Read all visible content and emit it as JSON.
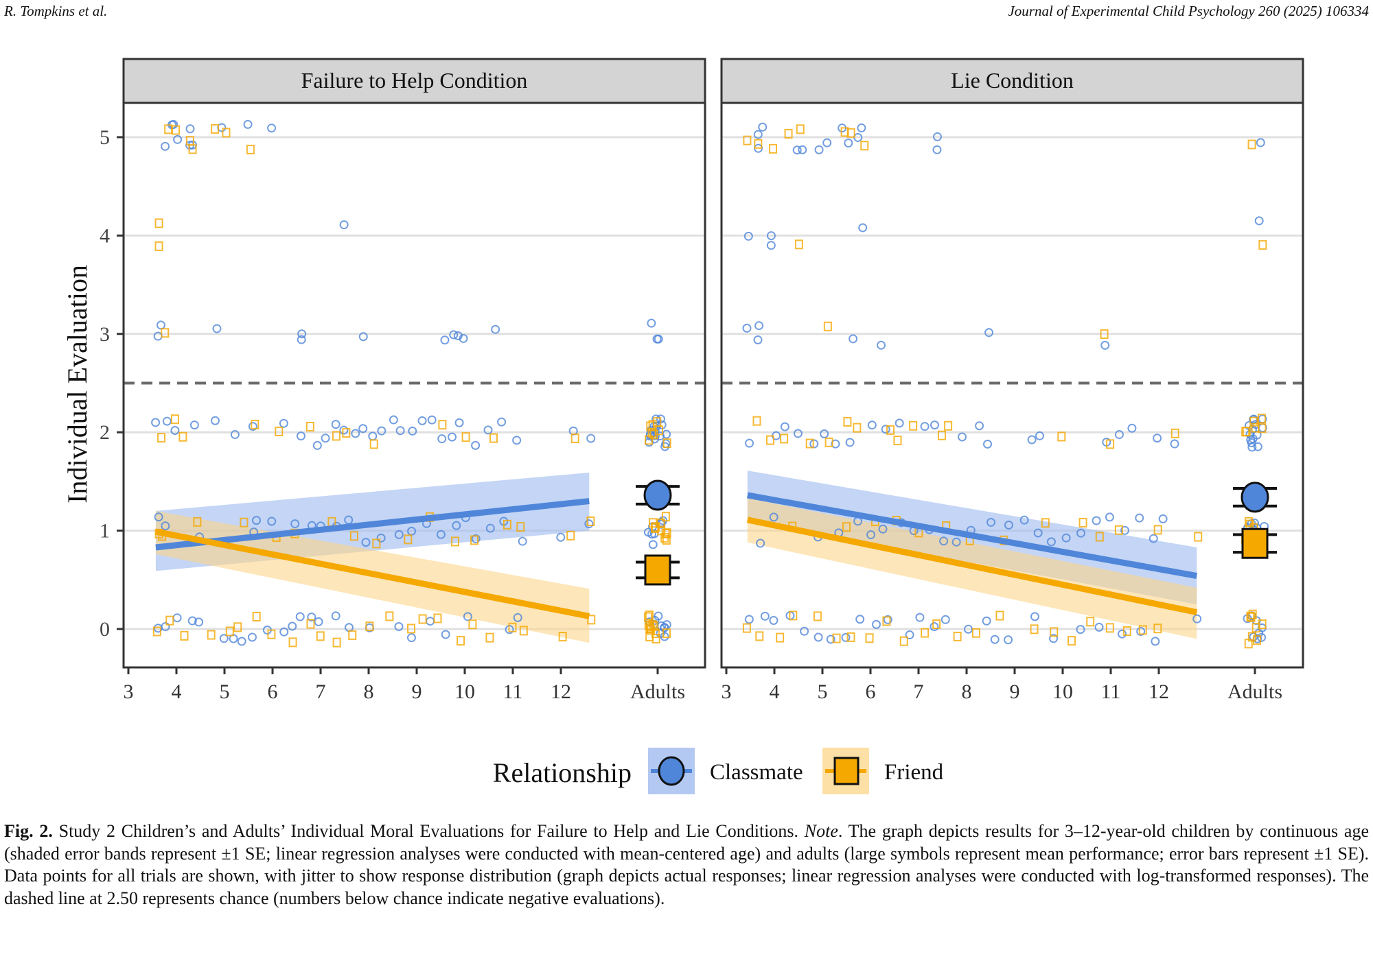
{
  "header": {
    "left": "R. Tompkins et al.",
    "right": "Journal of Experimental Child Psychology 260 (2025) 106334"
  },
  "chart_data": {
    "type": "scatter",
    "title": "",
    "ylabel": "Individual Evaluation",
    "xlabel": "",
    "ylim": [
      -0.4,
      5.3
    ],
    "yticks": [
      0,
      1,
      2,
      3,
      4,
      5
    ],
    "ytick_labels": [
      "0",
      "1",
      "2",
      "3",
      "4",
      "5"
    ],
    "xlim_age": [
      3,
      12.9
    ],
    "xticks": [
      3,
      4,
      5,
      6,
      7,
      8,
      9,
      10,
      11,
      12
    ],
    "xtick_labels": [
      "3",
      "4",
      "5",
      "6",
      "7",
      "8",
      "9",
      "10",
      "11",
      "12",
      "Adults"
    ],
    "adults_label": "Adults",
    "reference_line": {
      "y": 2.5,
      "style": "dashed",
      "label": "chance"
    },
    "grid": "horizontal-major",
    "legend": {
      "title": "Relationship",
      "position": "bottom",
      "entries": [
        {
          "name": "Classmate",
          "color": "#4f86d9",
          "shape": "circle"
        },
        {
          "name": "Friend",
          "color": "#f5a800",
          "shape": "square"
        }
      ]
    },
    "colors": {
      "Classmate": "#4f86d9",
      "Friend": "#f5a800",
      "Classmate_band": "#9db9ef",
      "Friend_band": "#fcd58a",
      "strip": "#d4d4d4",
      "grid": "#e0e0e0",
      "dash": "#6b6b6b"
    },
    "panels": [
      {
        "title": "Failure to Help Condition",
        "regression": [
          {
            "series": "Classmate",
            "x": [
              3.57,
              12.59
            ],
            "y": [
              0.83,
              1.3
            ],
            "band_upper": [
              1.2,
              1.59
            ],
            "band_lower": [
              0.59,
              1.0
            ]
          },
          {
            "series": "Friend",
            "x": [
              3.57,
              12.59
            ],
            "y": [
              0.99,
              0.13
            ],
            "band_upper": [
              1.2,
              0.41
            ],
            "band_lower": [
              0.76,
              -0.14
            ]
          }
        ],
        "adults_mean": [
          {
            "series": "Classmate",
            "mean": 1.36,
            "se": 0.09
          },
          {
            "series": "Friend",
            "mean": 0.6,
            "se": 0.08
          }
        ],
        "points": [
          {
            "series": "Classmate",
            "y": 5,
            "ages": [
              3.8,
              3.9,
              3.95,
              4.0,
              4.3,
              4.3,
              4.3,
              4.9,
              5.5,
              6.0
            ]
          },
          {
            "series": "Friend",
            "y": 5,
            "ages": [
              3.8,
              3.95,
              4.3,
              4.3,
              4.8,
              5.0,
              5.5
            ]
          },
          {
            "series": "Friend",
            "y": 4,
            "ages": [
              3.6,
              3.6
            ]
          },
          {
            "series": "Classmate",
            "y": 4,
            "ages": [
              7.5
            ]
          },
          {
            "series": "Classmate",
            "y": 3,
            "ages": [
              3.6,
              3.7,
              4.8,
              6.6,
              6.6,
              7.9,
              9.6,
              9.8,
              9.9,
              10.0,
              10.6
            ]
          },
          {
            "series": "Friend",
            "y": 3,
            "ages": [
              3.75
            ]
          },
          {
            "series": "Classmate",
            "y": 2,
            "ages": [
              3.6,
              3.8,
              4.0,
              4.4,
              4.8,
              5.2,
              5.6,
              6.2,
              6.6,
              6.9,
              7.1,
              7.3,
              7.5,
              7.7,
              7.9,
              8.1,
              8.3,
              8.5,
              8.7,
              8.9,
              9.1,
              9.3,
              9.5,
              9.7,
              9.9,
              10.2,
              10.5,
              10.8,
              11.1,
              12.3,
              12.6
            ]
          },
          {
            "series": "Friend",
            "y": 2,
            "ages": [
              3.7,
              4.0,
              4.1,
              5.6,
              6.1,
              6.8,
              7.3,
              7.5,
              8.1,
              9.5,
              10.0,
              10.6,
              12.3
            ]
          },
          {
            "series": "Classmate",
            "y": 1,
            "ages": [
              3.6,
              3.8,
              4.5,
              5.0,
              5.6,
              5.7,
              6.0,
              6.5,
              6.8,
              7.0,
              7.3,
              7.6,
              7.9,
              8.3,
              8.6,
              8.9,
              9.2,
              9.5,
              9.8,
              10.0,
              10.2,
              10.5,
              10.8,
              11.2,
              12.0,
              12.6
            ]
          },
          {
            "series": "Friend",
            "y": 1,
            "ages": [
              3.6,
              3.7,
              4.4,
              5.4,
              6.1,
              6.5,
              7.2,
              7.7,
              8.2,
              8.8,
              9.3,
              9.8,
              10.2,
              10.9,
              11.2,
              12.2,
              12.6
            ]
          },
          {
            "series": "Classmate",
            "y": 0,
            "ages": [
              3.6,
              3.8,
              4.0,
              4.3,
              4.5,
              5.0,
              5.2,
              5.4,
              5.6,
              5.9,
              6.2,
              6.4,
              6.6,
              6.8,
              7.0,
              7.3,
              7.6,
              8.0,
              8.6,
              8.9,
              9.3,
              9.6,
              10.1,
              10.9,
              11.1
            ]
          },
          {
            "series": "Friend",
            "y": 0,
            "ages": [
              3.6,
              3.9,
              4.2,
              4.7,
              5.1,
              5.3,
              5.7,
              6.0,
              6.4,
              6.8,
              7.0,
              7.3,
              7.7,
              8.0,
              8.4,
              8.9,
              9.1,
              9.4,
              9.9,
              10.2,
              10.5,
              11.0,
              11.2,
              12.0,
              12.6
            ]
          }
        ],
        "adults_points": [
          {
            "series": "Classmate",
            "y": 3,
            "n": 3
          },
          {
            "series": "Classmate",
            "y": 2,
            "n": 16
          },
          {
            "series": "Friend",
            "y": 2,
            "n": 8
          },
          {
            "series": "Classmate",
            "y": 1,
            "n": 8
          },
          {
            "series": "Friend",
            "y": 1,
            "n": 10
          },
          {
            "series": "Classmate",
            "y": 0,
            "n": 10
          },
          {
            "series": "Friend",
            "y": 0,
            "n": 12
          }
        ]
      },
      {
        "title": "Lie Condition",
        "regression": [
          {
            "series": "Classmate",
            "x": [
              3.44,
              12.79
            ],
            "y": [
              1.36,
              0.54
            ],
            "band_upper": [
              1.61,
              0.83
            ],
            "band_lower": [
              1.1,
              0.25
            ]
          },
          {
            "series": "Friend",
            "x": [
              3.44,
              12.79
            ],
            "y": [
              1.11,
              0.17
            ],
            "band_upper": [
              1.33,
              0.42
            ],
            "band_lower": [
              0.88,
              -0.1
            ]
          }
        ],
        "adults_mean": [
          {
            "series": "Classmate",
            "mean": 1.34,
            "se": 0.09
          },
          {
            "series": "Friend",
            "mean": 0.87,
            "se": 0.09
          }
        ],
        "points": [
          {
            "series": "Classmate",
            "y": 5,
            "ages": [
              3.7,
              3.7,
              3.75,
              4.5,
              4.6,
              4.9,
              5.1,
              5.4,
              5.5,
              5.7,
              5.8,
              7.4,
              7.4
            ]
          },
          {
            "series": "Friend",
            "y": 5,
            "ages": [
              3.45,
              3.7,
              4.0,
              4.3,
              4.5,
              5.5,
              5.6,
              5.9
            ]
          },
          {
            "series": "Classmate",
            "y": 4,
            "ages": [
              3.45,
              3.95,
              3.95,
              5.8
            ]
          },
          {
            "series": "Friend",
            "y": 4,
            "ages": [
              4.5
            ]
          },
          {
            "series": "Classmate",
            "y": 3,
            "ages": [
              3.45,
              3.7,
              3.7,
              5.6,
              6.2,
              8.5,
              10.9
            ]
          },
          {
            "series": "Friend",
            "y": 3,
            "ages": [
              5.1,
              10.9
            ]
          },
          {
            "series": "Classmate",
            "y": 2,
            "ages": [
              3.5,
              4.0,
              4.2,
              4.5,
              4.8,
              5.0,
              5.3,
              5.6,
              6.0,
              6.3,
              6.6,
              7.1,
              7.3,
              7.9,
              8.3,
              8.4,
              9.4,
              9.5,
              10.9,
              11.2,
              11.4,
              12.0,
              12.3
            ]
          },
          {
            "series": "Friend",
            "y": 2,
            "ages": [
              3.6,
              3.9,
              4.2,
              4.7,
              5.1,
              5.5,
              5.7,
              6.4,
              6.6,
              6.9,
              7.5,
              7.6,
              10.0,
              11.0,
              12.3
            ]
          },
          {
            "series": "Classmate",
            "y": 1,
            "ages": [
              3.7,
              4.0,
              4.9,
              5.3,
              5.7,
              6.0,
              6.3,
              6.6,
              6.9,
              7.2,
              7.5,
              7.8,
              8.1,
              8.5,
              8.9,
              9.2,
              9.5,
              9.8,
              10.1,
              10.4,
              10.7,
              11.0,
              11.3,
              11.6,
              11.9,
              12.1
            ]
          },
          {
            "series": "Friend",
            "y": 1,
            "ages": [
              4.4,
              5.5,
              6.1,
              6.5,
              7.0,
              7.6,
              8.1,
              8.8,
              9.6,
              10.4,
              10.8,
              11.2,
              12.0,
              12.8
            ]
          },
          {
            "series": "Classmate",
            "y": 0,
            "ages": [
              3.45,
              3.8,
              4.0,
              4.3,
              4.6,
              4.9,
              5.2,
              5.5,
              5.8,
              6.1,
              6.4,
              6.8,
              7.0,
              7.3,
              7.6,
              8.0,
              8.4,
              8.6,
              8.9,
              9.4,
              9.8,
              10.4,
              10.8,
              11.2,
              11.6,
              11.9,
              12.8
            ]
          },
          {
            "series": "Friend",
            "y": 0,
            "ages": [
              3.45,
              3.7,
              4.1,
              4.4,
              4.9,
              5.3,
              5.6,
              6.0,
              6.3,
              6.7,
              7.1,
              7.4,
              7.8,
              8.2,
              8.7,
              9.4,
              9.8,
              10.2,
              10.6,
              11.0,
              11.3,
              11.7,
              12.0
            ]
          }
        ],
        "adults_points": [
          {
            "series": "Classmate",
            "y": 5,
            "n": 1
          },
          {
            "series": "Friend",
            "y": 5,
            "n": 1
          },
          {
            "series": "Classmate",
            "y": 4,
            "n": 1
          },
          {
            "series": "Friend",
            "y": 4,
            "n": 1
          },
          {
            "series": "Classmate",
            "y": 2,
            "n": 14
          },
          {
            "series": "Friend",
            "y": 2,
            "n": 6
          },
          {
            "series": "Classmate",
            "y": 1,
            "n": 8
          },
          {
            "series": "Friend",
            "y": 1,
            "n": 6
          },
          {
            "series": "Classmate",
            "y": 0,
            "n": 8
          },
          {
            "series": "Friend",
            "y": 0,
            "n": 8
          }
        ]
      }
    ]
  },
  "caption": {
    "label": "Fig. 2.",
    "text_1": " Study 2 Children’s and Adults’ Individual Moral Evaluations for Failure to Help and Lie Conditions. ",
    "note_label": "Note",
    "text_2": ". The graph depicts results for 3–12-year-old children by continuous age (shaded error bands represent ±1 SE; linear regression analyses were conducted with mean-centered age) and adults (large symbols represent mean performance; error bars represent ±1 SE). Data points for all trials are shown, with jitter to show response distribution (graph depicts actual responses; linear regression analyses were conducted with log-transformed responses). The dashed line at 2.50 represents chance (numbers below chance indicate negative evaluations)."
  }
}
